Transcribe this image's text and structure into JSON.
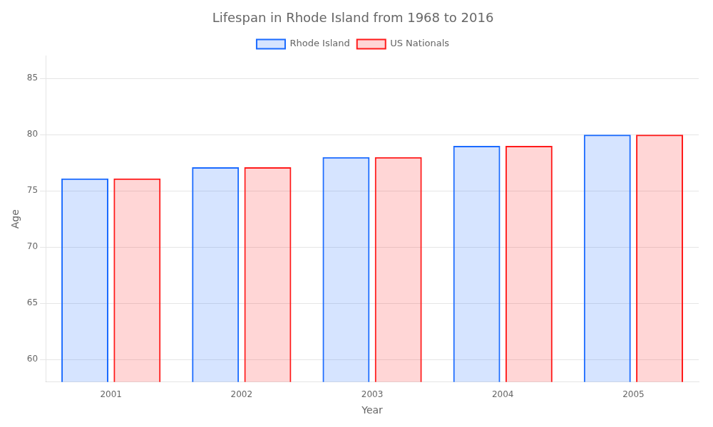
{
  "chart_data": {
    "type": "bar",
    "title": "Lifespan in Rhode Island from 1968 to 2016",
    "x_label": "Year",
    "y_label": "Age",
    "categories": [
      "2001",
      "2002",
      "2003",
      "2004",
      "2005"
    ],
    "series": [
      {
        "name": "Rhode Island",
        "color": "#1a6aff",
        "values": [
          76.1,
          77.1,
          78.0,
          79.0,
          80.0
        ]
      },
      {
        "name": "US Nationals",
        "color": "#ff1a1a",
        "values": [
          76.1,
          77.1,
          78.0,
          79.0,
          80.0
        ]
      }
    ],
    "ylim": [
      58,
      87
    ],
    "yticks": [
      60,
      65,
      70,
      75,
      80,
      85
    ],
    "grid": true,
    "legend": "top"
  }
}
